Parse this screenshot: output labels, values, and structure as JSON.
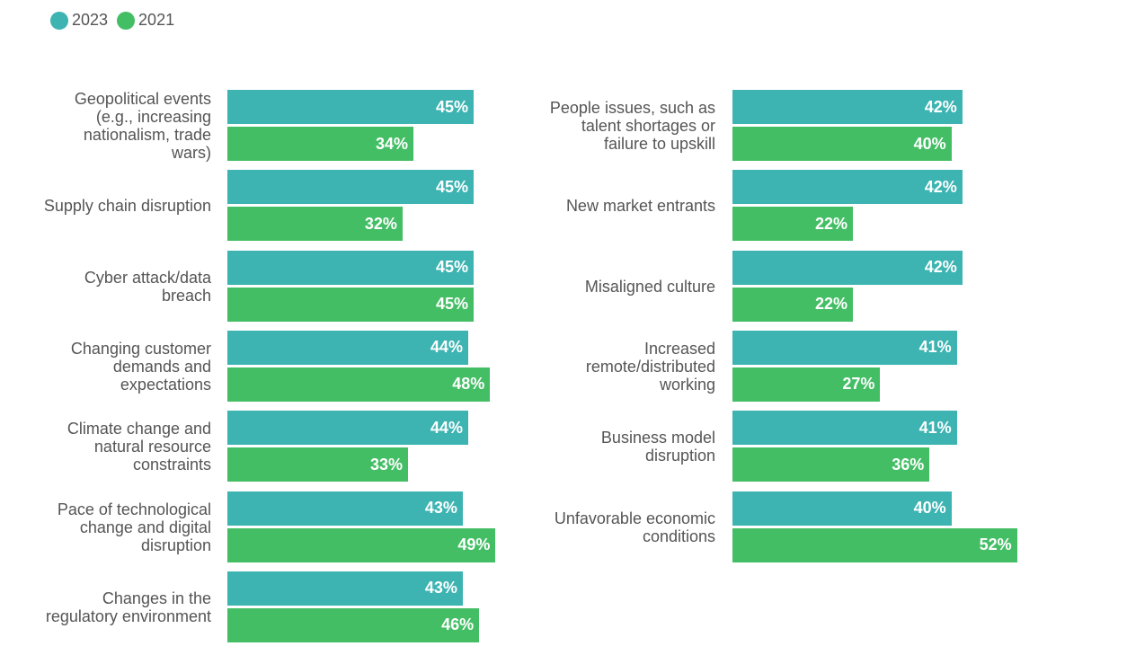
{
  "chart_data": {
    "type": "hbar",
    "categories": [
      "Geopolitical events (e.g., increasing nationalism, trade wars)",
      "Supply chain disruption",
      "Cyber attack/data breach",
      "Changing customer demands and expectations",
      "Climate change and natural resource constraints",
      "Pace of technological change and digital disruption",
      "Changes in the regulatory environment",
      "People issues, such as talent shortages or failure to upskill",
      "New market entrants",
      "Misaligned culture",
      "Increased remote/distributed working",
      "Business model disruption",
      "Unfavorable economic conditions"
    ],
    "series": [
      {
        "name": "2023",
        "color": "#3db4b2",
        "values": [
          45,
          45,
          45,
          44,
          44,
          43,
          43,
          42,
          42,
          42,
          41,
          41,
          40
        ],
        "value_labels": [
          "45%",
          "45%",
          "45%",
          "44%",
          "44%",
          "43%",
          "43%",
          "42%",
          "42%",
          "42%",
          "41%",
          "41%",
          "40%"
        ]
      },
      {
        "name": "2021",
        "color": "#44be65",
        "values": [
          34,
          32,
          45,
          48,
          33,
          49,
          46,
          40,
          22,
          22,
          27,
          36,
          52
        ],
        "value_labels": [
          "34%",
          "32%",
          "45%",
          "48%",
          "33%",
          "49%",
          "46%",
          "40%",
          "22%",
          "22%",
          "27%",
          "36%",
          "52%"
        ]
      }
    ]
  }
}
